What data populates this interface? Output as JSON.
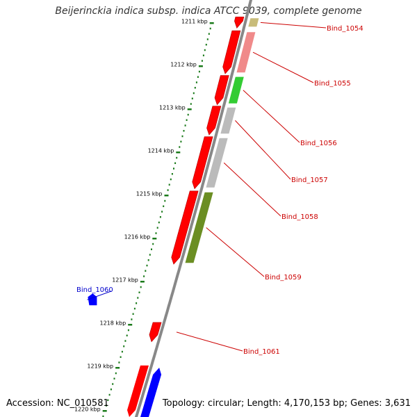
{
  "title": "Beijerinckia indica subsp. indica ATCC 9039, complete genome",
  "accession": "Accession: NC_010581",
  "summary": "Topology: circular; Length: 4,170,153 bp; Genes: 3,631",
  "scale": {
    "unit": "kbp",
    "ticks": [
      "1211 kbp",
      "1212 kbp",
      "1213 kbp",
      "1214 kbp",
      "1215 kbp",
      "1216 kbp",
      "1217 kbp",
      "1218 kbp",
      "1219 kbp",
      "1220 kbp"
    ]
  },
  "colors": {
    "forward_strand": "#ff0000",
    "reverse_strand": "#0000ff",
    "label_red": "#cc0000",
    "label_blue": "#0000cc",
    "scale_green": "#1a7a1a",
    "backbone": "#888888"
  },
  "features": [
    {
      "label": "Bind_1054",
      "strand": "forward",
      "start_kbp": 1210.86,
      "end_kbp": 1211.12,
      "color": "#ff0000",
      "track_color": "#c8bc7a"
    },
    {
      "label": "Bind_1055",
      "strand": "forward",
      "start_kbp": 1211.18,
      "end_kbp": 1212.18,
      "color": "#ff0000",
      "track_color": "#f08a8a"
    },
    {
      "label": "Bind_1056",
      "strand": "forward",
      "start_kbp": 1212.22,
      "end_kbp": 1212.9,
      "color": "#ff0000",
      "track_color": "#33cc33"
    },
    {
      "label": "Bind_1057",
      "strand": "forward",
      "start_kbp": 1212.93,
      "end_kbp": 1213.6,
      "color": "#ff0000",
      "track_color": "#bbbbbb"
    },
    {
      "label": "Bind_1058",
      "strand": "forward",
      "start_kbp": 1213.64,
      "end_kbp": 1214.85,
      "color": "#ff0000",
      "track_color": "#bbbbbb"
    },
    {
      "label": "Bind_1059",
      "strand": "forward",
      "start_kbp": 1214.9,
      "end_kbp": 1216.6,
      "color": "#ff0000",
      "track_color": "#6b8e23"
    },
    {
      "label": "Bind_1060",
      "strand": "reverse",
      "start_kbp": 1217.3,
      "end_kbp": 1217.55,
      "color": "#0000ff",
      "track_color": ""
    },
    {
      "label": "Bind_1061",
      "strand": "forward",
      "start_kbp": 1217.95,
      "end_kbp": 1218.4,
      "color": "#ff0000",
      "track_color": ""
    }
  ]
}
